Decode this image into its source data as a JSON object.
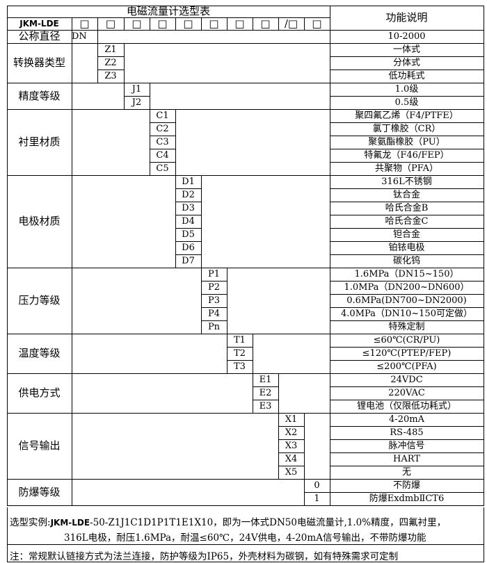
{
  "header": {
    "title": "电磁流量计选型表",
    "function_title": "功能说明",
    "model": "JKM-LDE",
    "slots": [
      "□",
      "□",
      "□",
      "□",
      "□",
      "□",
      "□",
      "□",
      "/□",
      "□"
    ]
  },
  "diameter": {
    "label": "公称直径",
    "code": "DN",
    "desc": "10-2000"
  },
  "sections": [
    {
      "label": "转换器类型",
      "col": 1,
      "codes": [
        "Z1",
        "Z2",
        "Z3"
      ],
      "descs": [
        "一体式",
        "分体式",
        "低功耗式"
      ]
    },
    {
      "label": "精度等级",
      "col": 2,
      "codes": [
        "J1",
        "J2"
      ],
      "descs": [
        "1.0级",
        "0.5级"
      ]
    },
    {
      "label": "衬里材质",
      "col": 3,
      "codes": [
        "C1",
        "C2",
        "C3",
        "C4",
        "C5"
      ],
      "descs": [
        "聚四氟乙烯（F4/PTFE）",
        "氯丁橡胶（CR）",
        "聚氨酯橡胶（PU）",
        "特氟龙（F46/FEP）",
        "共聚物（PFA）"
      ]
    },
    {
      "label": "电极材质",
      "col": 4,
      "codes": [
        "D1",
        "D2",
        "D3",
        "D4",
        "D5",
        "D6",
        "D7"
      ],
      "descs": [
        "316L不锈钢",
        "钛合金",
        "哈氏合金B",
        "哈氏合金C",
        "钽合金",
        "铂铱电极",
        "碳化钨"
      ]
    },
    {
      "label": "压力等级",
      "col": 5,
      "codes": [
        "P1",
        "P2",
        "P3",
        "P4",
        "Pn"
      ],
      "descs": [
        "1.6MPa（DN15~150）",
        "1.0MPa（DN200~DN600）",
        "0.6MPa(DN700~DN2000)",
        "4.0MPa（DN10~150可定做）",
        "特殊定制"
      ]
    },
    {
      "label": "温度等级",
      "col": 6,
      "codes": [
        "T1",
        "T2",
        "T3"
      ],
      "descs": [
        "≤60℃(CR/PU)",
        "≤120℃(PTEP/FEP)",
        "≤200℃(PFA)"
      ]
    },
    {
      "label": "供电方式",
      "col": 7,
      "codes": [
        "E1",
        "E2",
        "E3"
      ],
      "descs": [
        "24VDC",
        "220VAC",
        "锂电池（仅限低功耗式）"
      ]
    },
    {
      "label": "信号输出",
      "col": 8,
      "codes": [
        "X1",
        "X2",
        "X3",
        "X4",
        "X5"
      ],
      "descs": [
        "4-20mA",
        "RS-485",
        "脉冲信号",
        "HART",
        "无"
      ]
    },
    {
      "label": "防爆等级",
      "col": 9,
      "codes": [
        "0",
        "1"
      ],
      "descs": [
        "不防爆",
        "防爆ExdmbⅡCT6"
      ]
    }
  ],
  "example": {
    "prefix": "选型实例:",
    "model": "JKM-LDE",
    "line1_rest": "-50-Z1J1C1D1P1T1E1X10，即为一体式DN50电磁流量计,1.0%精度，四氟衬里，",
    "line2": "316L电极，耐压1.6MPa，耐温≤60℃，24V供电，4-20mA信号输出，不带防爆功能"
  },
  "note": "注：常规默认链接方式为法兰连接，防护等级为IP65，外壳材料为碳钢，如有特殊需求可定制"
}
